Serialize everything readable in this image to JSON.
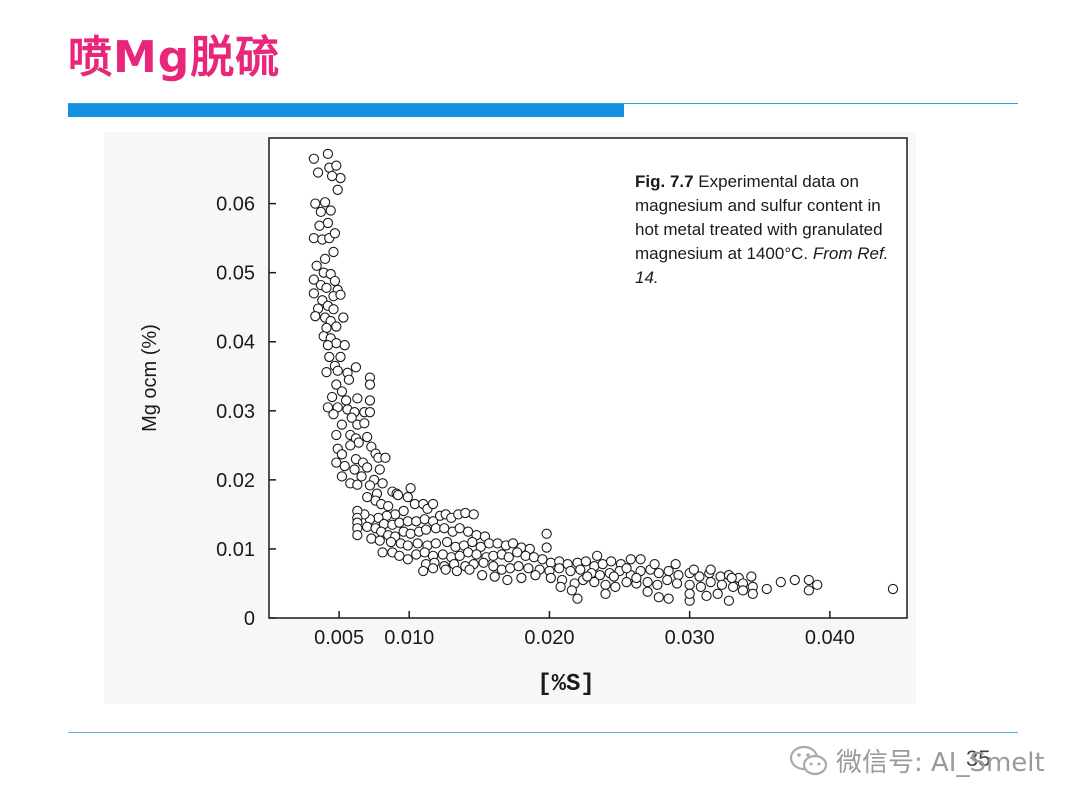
{
  "slide": {
    "title": "喷Mg脱硫",
    "page_number": "35",
    "watermark": "微信号: AI_Smelt"
  },
  "colors": {
    "title": "#e8267a",
    "accent_bar": "#1591e0",
    "accent_line": "#2a9fe6"
  },
  "chart_data": {
    "type": "scatter",
    "xlabel": "[%S]",
    "ylabel": "Mg ocm (%)",
    "xlim": [
      0.0,
      0.0455
    ],
    "ylim": [
      0.0,
      0.0695
    ],
    "xticks": [
      0.005,
      0.01,
      0.02,
      0.03,
      0.04
    ],
    "xtick_labels": [
      "0.005",
      "0.010",
      "0.020",
      "0.030",
      "0.040"
    ],
    "yticks": [
      0,
      0.01,
      0.02,
      0.03,
      0.04,
      0.05,
      0.06
    ],
    "ytick_labels": [
      "0",
      "0.01",
      "0.02",
      "0.03",
      "0.04",
      "0.05",
      "0.06"
    ],
    "grid": false,
    "marker": "open circle",
    "caption": {
      "fig_number": "Fig. 7.7",
      "text": " Experimental data on magnesium and sulfur content in hot metal treated with granulated magnesium at 1400°C. ",
      "reference": "From Ref. 14."
    },
    "points": [
      [
        0.0032,
        0.0665
      ],
      [
        0.0035,
        0.0645
      ],
      [
        0.0042,
        0.0672
      ],
      [
        0.0043,
        0.0652
      ],
      [
        0.0048,
        0.0655
      ],
      [
        0.0051,
        0.0637
      ],
      [
        0.0045,
        0.064
      ],
      [
        0.0049,
        0.062
      ],
      [
        0.0033,
        0.06
      ],
      [
        0.0037,
        0.0588
      ],
      [
        0.004,
        0.0602
      ],
      [
        0.0044,
        0.059
      ],
      [
        0.0042,
        0.0572
      ],
      [
        0.0036,
        0.0568
      ],
      [
        0.0032,
        0.055
      ],
      [
        0.0038,
        0.0548
      ],
      [
        0.0043,
        0.055
      ],
      [
        0.0047,
        0.0557
      ],
      [
        0.0046,
        0.053
      ],
      [
        0.004,
        0.052
      ],
      [
        0.0034,
        0.051
      ],
      [
        0.0039,
        0.05
      ],
      [
        0.0044,
        0.0498
      ],
      [
        0.0032,
        0.049
      ],
      [
        0.0037,
        0.0482
      ],
      [
        0.0041,
        0.0478
      ],
      [
        0.0047,
        0.0488
      ],
      [
        0.0049,
        0.0475
      ],
      [
        0.0046,
        0.0466
      ],
      [
        0.0051,
        0.0468
      ],
      [
        0.0032,
        0.047
      ],
      [
        0.0038,
        0.046
      ],
      [
        0.0042,
        0.0452
      ],
      [
        0.0035,
        0.0448
      ],
      [
        0.0046,
        0.0447
      ],
      [
        0.0033,
        0.0437
      ],
      [
        0.004,
        0.0435
      ],
      [
        0.0044,
        0.043
      ],
      [
        0.0053,
        0.0435
      ],
      [
        0.0041,
        0.042
      ],
      [
        0.0048,
        0.0422
      ],
      [
        0.0039,
        0.0408
      ],
      [
        0.0044,
        0.0405
      ],
      [
        0.0048,
        0.0398
      ],
      [
        0.0042,
        0.0395
      ],
      [
        0.0054,
        0.0395
      ],
      [
        0.0043,
        0.0378
      ],
      [
        0.0051,
        0.0378
      ],
      [
        0.0047,
        0.0365
      ],
      [
        0.0041,
        0.0356
      ],
      [
        0.0049,
        0.0358
      ],
      [
        0.0056,
        0.0355
      ],
      [
        0.0062,
        0.0363
      ],
      [
        0.0072,
        0.0348
      ],
      [
        0.0048,
        0.0338
      ],
      [
        0.0057,
        0.0345
      ],
      [
        0.0072,
        0.0338
      ],
      [
        0.0052,
        0.0328
      ],
      [
        0.0045,
        0.032
      ],
      [
        0.0055,
        0.0315
      ],
      [
        0.0063,
        0.0318
      ],
      [
        0.0072,
        0.0315
      ],
      [
        0.0042,
        0.0305
      ],
      [
        0.0049,
        0.0305
      ],
      [
        0.0056,
        0.0302
      ],
      [
        0.0061,
        0.0298
      ],
      [
        0.0068,
        0.0298
      ],
      [
        0.0072,
        0.0298
      ],
      [
        0.0046,
        0.0295
      ],
      [
        0.0059,
        0.029
      ],
      [
        0.0052,
        0.028
      ],
      [
        0.0063,
        0.028
      ],
      [
        0.0068,
        0.0282
      ],
      [
        0.0048,
        0.0265
      ],
      [
        0.0058,
        0.0265
      ],
      [
        0.0062,
        0.026
      ],
      [
        0.007,
        0.0262
      ],
      [
        0.0064,
        0.0254
      ],
      [
        0.0058,
        0.025
      ],
      [
        0.0073,
        0.0248
      ],
      [
        0.0049,
        0.0245
      ],
      [
        0.0052,
        0.0237
      ],
      [
        0.0076,
        0.0238
      ],
      [
        0.0078,
        0.0232
      ],
      [
        0.0083,
        0.0232
      ],
      [
        0.0062,
        0.023
      ],
      [
        0.0067,
        0.0225
      ],
      [
        0.0048,
        0.0225
      ],
      [
        0.0054,
        0.022
      ],
      [
        0.0061,
        0.0215
      ],
      [
        0.007,
        0.0218
      ],
      [
        0.0079,
        0.0215
      ],
      [
        0.0066,
        0.0205
      ],
      [
        0.0075,
        0.02
      ],
      [
        0.0052,
        0.0205
      ],
      [
        0.0058,
        0.0195
      ],
      [
        0.0063,
        0.0193
      ],
      [
        0.0072,
        0.0192
      ],
      [
        0.0081,
        0.0195
      ],
      [
        0.0088,
        0.0183
      ],
      [
        0.0091,
        0.018
      ],
      [
        0.0077,
        0.018
      ],
      [
        0.007,
        0.0175
      ],
      [
        0.0076,
        0.017
      ],
      [
        0.008,
        0.0165
      ],
      [
        0.0085,
        0.0162
      ],
      [
        0.0092,
        0.0178
      ],
      [
        0.0099,
        0.0175
      ],
      [
        0.0101,
        0.0188
      ],
      [
        0.0104,
        0.0165
      ],
      [
        0.011,
        0.0165
      ],
      [
        0.0113,
        0.0158
      ],
      [
        0.0117,
        0.0165
      ],
      [
        0.0096,
        0.0155
      ],
      [
        0.009,
        0.015
      ],
      [
        0.0084,
        0.0148
      ],
      [
        0.0078,
        0.0145
      ],
      [
        0.0072,
        0.0143
      ],
      [
        0.0068,
        0.015
      ],
      [
        0.0063,
        0.0155
      ],
      [
        0.0063,
        0.0145
      ],
      [
        0.0063,
        0.0138
      ],
      [
        0.0063,
        0.013
      ],
      [
        0.0063,
        0.012
      ],
      [
        0.007,
        0.0132
      ],
      [
        0.0076,
        0.013
      ],
      [
        0.0082,
        0.0136
      ],
      [
        0.0088,
        0.0135
      ],
      [
        0.0093,
        0.0138
      ],
      [
        0.0099,
        0.014
      ],
      [
        0.0105,
        0.014
      ],
      [
        0.0111,
        0.0143
      ],
      [
        0.0117,
        0.014
      ],
      [
        0.0122,
        0.0148
      ],
      [
        0.0126,
        0.015
      ],
      [
        0.013,
        0.0145
      ],
      [
        0.0135,
        0.015
      ],
      [
        0.014,
        0.0152
      ],
      [
        0.0146,
        0.015
      ],
      [
        0.008,
        0.0125
      ],
      [
        0.0085,
        0.012
      ],
      [
        0.009,
        0.0118
      ],
      [
        0.0096,
        0.0125
      ],
      [
        0.0101,
        0.0122
      ],
      [
        0.0107,
        0.0125
      ],
      [
        0.0112,
        0.0128
      ],
      [
        0.0119,
        0.013
      ],
      [
        0.0125,
        0.013
      ],
      [
        0.0131,
        0.0125
      ],
      [
        0.0136,
        0.013
      ],
      [
        0.0142,
        0.0125
      ],
      [
        0.0148,
        0.012
      ],
      [
        0.0154,
        0.0118
      ],
      [
        0.0073,
        0.0115
      ],
      [
        0.0079,
        0.0112
      ],
      [
        0.0087,
        0.011
      ],
      [
        0.0094,
        0.0108
      ],
      [
        0.0099,
        0.0105
      ],
      [
        0.0106,
        0.0108
      ],
      [
        0.0113,
        0.0105
      ],
      [
        0.0119,
        0.0108
      ],
      [
        0.0127,
        0.011
      ],
      [
        0.0133,
        0.0103
      ],
      [
        0.0139,
        0.0105
      ],
      [
        0.0145,
        0.011
      ],
      [
        0.0151,
        0.0103
      ],
      [
        0.0157,
        0.0108
      ],
      [
        0.0163,
        0.0108
      ],
      [
        0.0169,
        0.0105
      ],
      [
        0.0174,
        0.0108
      ],
      [
        0.018,
        0.0102
      ],
      [
        0.0186,
        0.01
      ],
      [
        0.0198,
        0.0122
      ],
      [
        0.0198,
        0.0102
      ],
      [
        0.0081,
        0.0095
      ],
      [
        0.0088,
        0.0095
      ],
      [
        0.0093,
        0.009
      ],
      [
        0.0099,
        0.0085
      ],
      [
        0.0105,
        0.0092
      ],
      [
        0.0111,
        0.0095
      ],
      [
        0.0117,
        0.009
      ],
      [
        0.0124,
        0.0092
      ],
      [
        0.013,
        0.0088
      ],
      [
        0.0136,
        0.009
      ],
      [
        0.0142,
        0.0095
      ],
      [
        0.0148,
        0.0092
      ],
      [
        0.0155,
        0.0088
      ],
      [
        0.016,
        0.009
      ],
      [
        0.0166,
        0.0092
      ],
      [
        0.0171,
        0.0088
      ],
      [
        0.0177,
        0.0095
      ],
      [
        0.0183,
        0.009
      ],
      [
        0.0189,
        0.0088
      ],
      [
        0.0195,
        0.0085
      ],
      [
        0.0201,
        0.008
      ],
      [
        0.0207,
        0.0082
      ],
      [
        0.0213,
        0.0078
      ],
      [
        0.022,
        0.008
      ],
      [
        0.0226,
        0.0082
      ],
      [
        0.0232,
        0.0075
      ],
      [
        0.0238,
        0.0078
      ],
      [
        0.0244,
        0.0082
      ],
      [
        0.0251,
        0.0078
      ],
      [
        0.0258,
        0.0085
      ],
      [
        0.0265,
        0.0085
      ],
      [
        0.0112,
        0.0078
      ],
      [
        0.0118,
        0.008
      ],
      [
        0.0125,
        0.0075
      ],
      [
        0.0132,
        0.0078
      ],
      [
        0.014,
        0.0075
      ],
      [
        0.0146,
        0.0078
      ],
      [
        0.0153,
        0.008
      ],
      [
        0.016,
        0.0075
      ],
      [
        0.0166,
        0.007
      ],
      [
        0.0172,
        0.0072
      ],
      [
        0.0178,
        0.0075
      ],
      [
        0.0185,
        0.0072
      ],
      [
        0.0193,
        0.007
      ],
      [
        0.02,
        0.0068
      ],
      [
        0.0207,
        0.0072
      ],
      [
        0.0215,
        0.0068
      ],
      [
        0.0222,
        0.007
      ],
      [
        0.023,
        0.0065
      ],
      [
        0.0236,
        0.0062
      ],
      [
        0.0243,
        0.0065
      ],
      [
        0.025,
        0.0068
      ],
      [
        0.0258,
        0.0062
      ],
      [
        0.0265,
        0.0068
      ],
      [
        0.0272,
        0.007
      ],
      [
        0.0278,
        0.0065
      ],
      [
        0.0285,
        0.0068
      ],
      [
        0.0292,
        0.0062
      ],
      [
        0.03,
        0.0065
      ],
      [
        0.0307,
        0.006
      ],
      [
        0.0314,
        0.0065
      ],
      [
        0.0322,
        0.006
      ],
      [
        0.0328,
        0.0062
      ],
      [
        0.0335,
        0.0058
      ],
      [
        0.0344,
        0.006
      ],
      [
        0.011,
        0.0068
      ],
      [
        0.0117,
        0.0072
      ],
      [
        0.0126,
        0.007
      ],
      [
        0.0134,
        0.0068
      ],
      [
        0.0143,
        0.007
      ],
      [
        0.0152,
        0.0062
      ],
      [
        0.0161,
        0.006
      ],
      [
        0.017,
        0.0055
      ],
      [
        0.018,
        0.0058
      ],
      [
        0.019,
        0.0062
      ],
      [
        0.0201,
        0.0058
      ],
      [
        0.0209,
        0.0055
      ],
      [
        0.0218,
        0.005
      ],
      [
        0.0224,
        0.0055
      ],
      [
        0.0232,
        0.0052
      ],
      [
        0.024,
        0.0048
      ],
      [
        0.0247,
        0.0045
      ],
      [
        0.0255,
        0.0052
      ],
      [
        0.0262,
        0.005
      ],
      [
        0.027,
        0.0052
      ],
      [
        0.0277,
        0.0048
      ],
      [
        0.0284,
        0.0055
      ],
      [
        0.0291,
        0.005
      ],
      [
        0.03,
        0.0048
      ],
      [
        0.0308,
        0.0045
      ],
      [
        0.0315,
        0.0052
      ],
      [
        0.0323,
        0.0048
      ],
      [
        0.0331,
        0.0045
      ],
      [
        0.0338,
        0.005
      ],
      [
        0.0345,
        0.0045
      ],
      [
        0.0365,
        0.0052
      ],
      [
        0.0375,
        0.0055
      ],
      [
        0.0385,
        0.0055
      ],
      [
        0.0391,
        0.0048
      ],
      [
        0.0385,
        0.004
      ],
      [
        0.0445,
        0.0042
      ],
      [
        0.0208,
        0.0045
      ],
      [
        0.0216,
        0.004
      ],
      [
        0.022,
        0.0028
      ],
      [
        0.024,
        0.0035
      ],
      [
        0.027,
        0.0038
      ],
      [
        0.0278,
        0.003
      ],
      [
        0.0285,
        0.0028
      ],
      [
        0.03,
        0.0025
      ],
      [
        0.03,
        0.0035
      ],
      [
        0.0312,
        0.0032
      ],
      [
        0.032,
        0.0035
      ],
      [
        0.0328,
        0.0025
      ],
      [
        0.0345,
        0.0035
      ],
      [
        0.0338,
        0.004
      ],
      [
        0.0355,
        0.0042
      ],
      [
        0.0227,
        0.006
      ],
      [
        0.0234,
        0.009
      ],
      [
        0.0246,
        0.006
      ],
      [
        0.0255,
        0.0072
      ],
      [
        0.0262,
        0.0058
      ],
      [
        0.0275,
        0.0078
      ],
      [
        0.029,
        0.0078
      ],
      [
        0.0303,
        0.007
      ],
      [
        0.0315,
        0.007
      ],
      [
        0.033,
        0.0058
      ]
    ]
  }
}
